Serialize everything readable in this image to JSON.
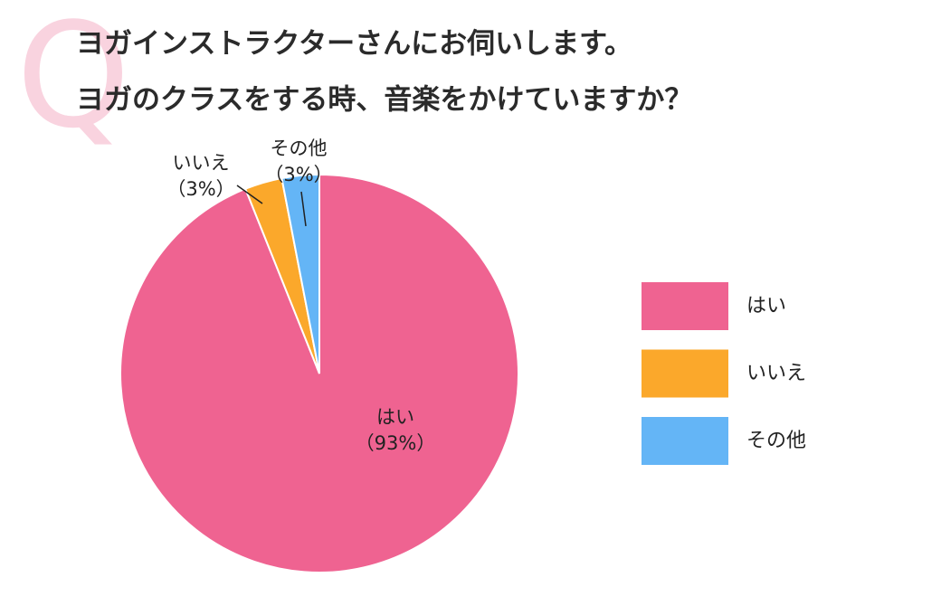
{
  "chart_data": {
    "type": "pie",
    "badge": "Q",
    "title": [
      "ヨガインストラクターさんにお伺いします。",
      "ヨガのクラスをする時、音楽をかけていますか？"
    ],
    "categories": [
      "はい",
      "いいえ",
      "その他"
    ],
    "values": [
      93,
      3,
      3
    ],
    "value_labels": [
      "（93%）",
      "（3%）",
      "（3%）"
    ],
    "colors": [
      "#ef6391",
      "#fba82b",
      "#64b5f6"
    ],
    "legend": "right"
  }
}
